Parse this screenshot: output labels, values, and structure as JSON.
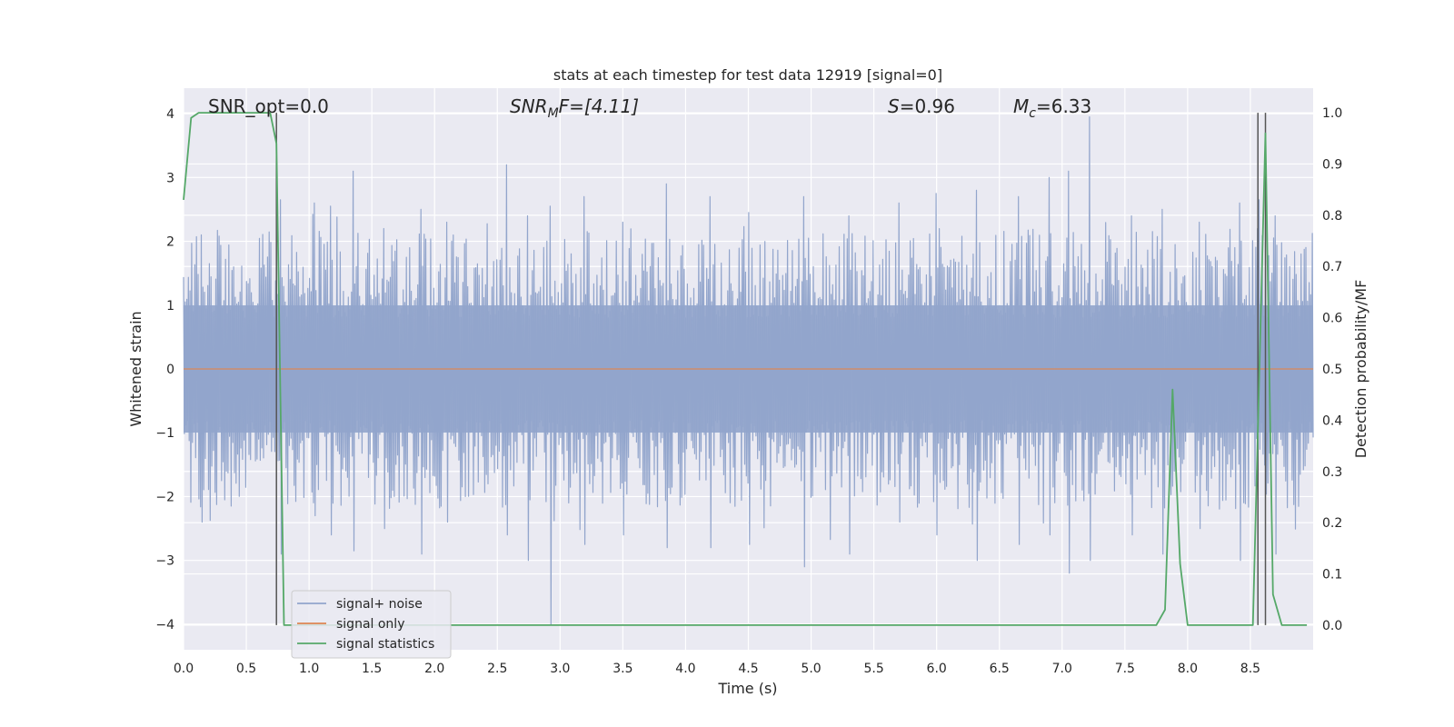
{
  "chart_data": {
    "type": "line",
    "title": "stats at each timestep for test data 12919 [signal=0]",
    "xlabel": "Time (s)",
    "ylabel_left": "Whitened strain",
    "ylabel_right": "Detection probability/MF",
    "xlim": [
      0.0,
      9.0
    ],
    "ylim_left": [
      -4.4,
      4.4
    ],
    "ylim_right": [
      -0.048,
      1.048
    ],
    "grid": true,
    "legend_position": "lower left",
    "x_ticks": [
      "0.0",
      "0.5",
      "1.0",
      "1.5",
      "2.0",
      "2.5",
      "3.0",
      "3.5",
      "4.0",
      "4.5",
      "5.0",
      "5.5",
      "6.0",
      "6.5",
      "7.0",
      "7.5",
      "8.0",
      "8.5"
    ],
    "y_ticks_left": [
      "4",
      "3",
      "2",
      "1",
      "0",
      "−1",
      "−2",
      "−3",
      "−4"
    ],
    "y_ticks_right": [
      "1.0",
      "0.9",
      "0.8",
      "0.7",
      "0.6",
      "0.5",
      "0.4",
      "0.3",
      "0.2",
      "0.1",
      "0.0"
    ],
    "annotations": {
      "snr_opt": "SNR_opt=0.0",
      "snr_mf_var": "SNR",
      "snr_mf_sub": "M",
      "snr_mf_rest": "F=[4.11]",
      "s_var": "S",
      "s_rest": "=0.96",
      "mc_var": "M",
      "mc_sub": "c",
      "mc_rest": "=6.33"
    },
    "series": [
      {
        "name": "signal+ noise",
        "color": "#92a5cc",
        "axis": "left",
        "description_peaks": {
          "x": [
            0.15,
            0.78,
            1.05,
            1.17,
            1.35,
            1.6,
            1.9,
            2.1,
            2.58,
            2.75,
            2.93,
            3.2,
            3.5,
            3.85,
            4.2,
            4.5,
            4.95,
            5.3,
            5.7,
            6.0,
            6.32,
            6.65,
            6.9,
            7.05,
            7.22,
            7.55,
            7.8,
            8.1,
            8.42,
            8.7
          ],
          "max": [
            2.1,
            2.65,
            2.6,
            2.55,
            3.1,
            2.2,
            2.5,
            2.3,
            3.2,
            2.4,
            2.55,
            2.7,
            2.3,
            2.9,
            2.7,
            2.45,
            2.7,
            2.4,
            2.6,
            2.75,
            2.8,
            2.7,
            3.0,
            3.1,
            3.95,
            2.4,
            2.5,
            2.3,
            2.6,
            2.4
          ],
          "min": [
            -2.4,
            -2.9,
            -2.3,
            -2.6,
            -2.85,
            -2.5,
            -2.9,
            -2.4,
            -2.6,
            -3.0,
            -4.0,
            -2.75,
            -2.6,
            -2.8,
            -2.8,
            -2.75,
            -3.1,
            -2.9,
            -2.4,
            -2.6,
            -3.0,
            -2.75,
            -2.6,
            -3.2,
            -3.0,
            -2.6,
            -2.9,
            -2.5,
            -3.0,
            -2.9
          ]
        }
      },
      {
        "name": "signal only",
        "color": "#dd8452",
        "axis": "left",
        "x": [
          0.0,
          9.0
        ],
        "y": [
          0.0,
          0.0
        ]
      },
      {
        "name": "signal statistics",
        "color": "#55a868",
        "axis": "right",
        "x": [
          0.0,
          0.06,
          0.12,
          0.5,
          0.69,
          0.74,
          0.8,
          7.4,
          7.75,
          7.82,
          7.88,
          7.94,
          8.0,
          8.1,
          8.52,
          8.62,
          8.68,
          8.75,
          8.95
        ],
        "y": [
          0.83,
          0.99,
          1.0,
          1.0,
          1.0,
          0.94,
          0.0,
          0.0,
          0.0,
          0.03,
          0.46,
          0.12,
          0.0,
          0.0,
          0.0,
          0.96,
          0.06,
          0.0,
          0.0
        ]
      }
    ],
    "vertical_markers": {
      "color": "#555555",
      "x": [
        0.74,
        8.56,
        8.62
      ],
      "y_top": [
        1.0,
        1.0,
        1.0
      ]
    }
  }
}
